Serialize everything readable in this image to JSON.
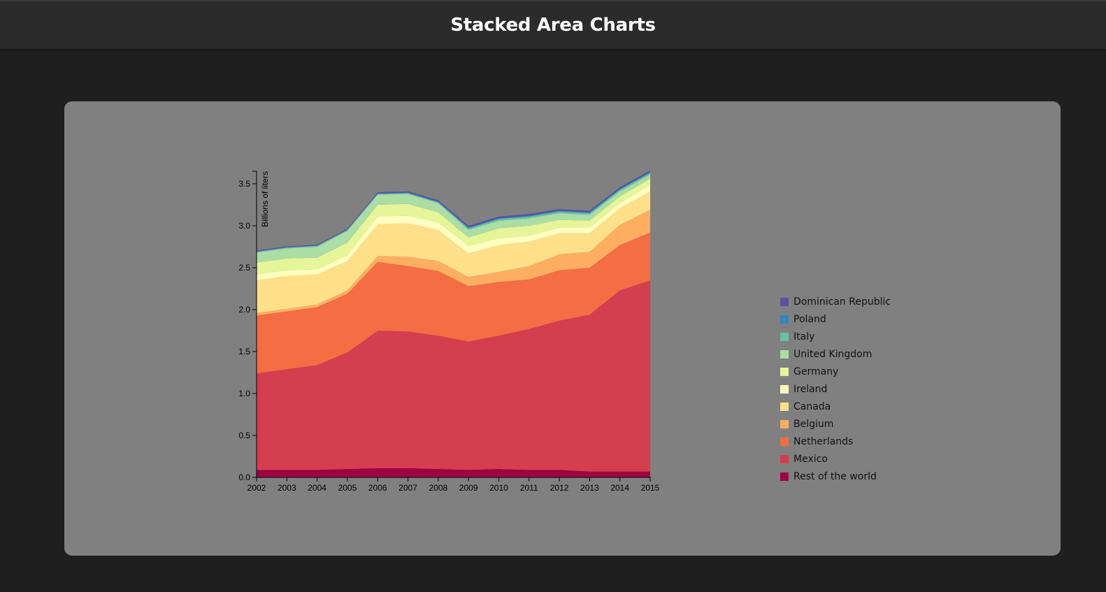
{
  "page": {
    "title": "Stacked Area Charts"
  },
  "chart_data": {
    "type": "area",
    "stacked": true,
    "ylabel": "Billions of liters",
    "x": [
      2002,
      2003,
      2004,
      2005,
      2006,
      2007,
      2008,
      2009,
      2010,
      2011,
      2012,
      2013,
      2014,
      2015
    ],
    "ylim": [
      0,
      3.65
    ],
    "yticks": [
      0.0,
      0.5,
      1.0,
      1.5,
      2.0,
      2.5,
      3.0,
      3.5
    ],
    "ytick_labels": [
      "0.0",
      "0.5",
      "1.0",
      "1.5",
      "2.0",
      "2.5",
      "3.0",
      "3.5"
    ],
    "grid": false,
    "legend_position": "right",
    "series": [
      {
        "name": "Rest of the world",
        "color": "#9e0142",
        "values": [
          0.09,
          0.09,
          0.09,
          0.1,
          0.11,
          0.11,
          0.1,
          0.09,
          0.1,
          0.09,
          0.09,
          0.07,
          0.07,
          0.07
        ]
      },
      {
        "name": "Mexico",
        "color": "#d53e4f",
        "values": [
          1.15,
          1.2,
          1.25,
          1.39,
          1.64,
          1.63,
          1.59,
          1.53,
          1.59,
          1.68,
          1.78,
          1.87,
          2.16,
          2.28
        ]
      },
      {
        "name": "Netherlands",
        "color": "#f46d43",
        "values": [
          0.69,
          0.69,
          0.69,
          0.7,
          0.82,
          0.78,
          0.77,
          0.66,
          0.64,
          0.59,
          0.6,
          0.56,
          0.54,
          0.57
        ]
      },
      {
        "name": "Belgium",
        "color": "#fdae61",
        "values": [
          0.03,
          0.03,
          0.03,
          0.04,
          0.07,
          0.11,
          0.12,
          0.11,
          0.12,
          0.16,
          0.19,
          0.19,
          0.24,
          0.27
        ]
      },
      {
        "name": "Canada",
        "color": "#fee08b",
        "values": [
          0.39,
          0.39,
          0.36,
          0.35,
          0.38,
          0.4,
          0.37,
          0.28,
          0.32,
          0.29,
          0.25,
          0.22,
          0.2,
          0.22
        ]
      },
      {
        "name": "Ireland",
        "color": "#ffffbf",
        "values": [
          0.07,
          0.07,
          0.06,
          0.07,
          0.09,
          0.09,
          0.09,
          0.09,
          0.08,
          0.07,
          0.07,
          0.07,
          0.06,
          0.08
        ]
      },
      {
        "name": "Germany",
        "color": "#e6f598",
        "values": [
          0.14,
          0.14,
          0.14,
          0.15,
          0.14,
          0.14,
          0.12,
          0.1,
          0.12,
          0.12,
          0.09,
          0.08,
          0.08,
          0.07
        ]
      },
      {
        "name": "United Kingdom",
        "color": "#abdda4",
        "values": [
          0.12,
          0.12,
          0.13,
          0.14,
          0.12,
          0.12,
          0.11,
          0.09,
          0.09,
          0.09,
          0.08,
          0.07,
          0.06,
          0.05
        ]
      },
      {
        "name": "Italy",
        "color": "#66c2a5",
        "values": [
          0.01,
          0.01,
          0.01,
          0.01,
          0.01,
          0.01,
          0.01,
          0.02,
          0.02,
          0.02,
          0.02,
          0.02,
          0.02,
          0.02
        ]
      },
      {
        "name": "Poland",
        "color": "#3288bd",
        "values": [
          0.005,
          0.005,
          0.005,
          0.005,
          0.005,
          0.005,
          0.01,
          0.01,
          0.01,
          0.01,
          0.01,
          0.01,
          0.01,
          0.01
        ]
      },
      {
        "name": "Dominican Republic",
        "color": "#5e4fa2",
        "values": [
          0.01,
          0.01,
          0.01,
          0.01,
          0.015,
          0.015,
          0.015,
          0.02,
          0.02,
          0.02,
          0.02,
          0.02,
          0.02,
          0.02
        ]
      }
    ]
  }
}
